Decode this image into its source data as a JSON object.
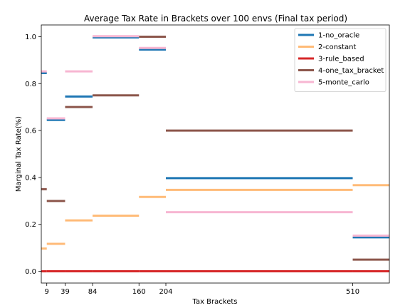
{
  "chart_data": {
    "type": "line",
    "title": "Average Tax Rate in Brackets over 100 envs (Final tax period)",
    "xlabel": "Tax Brackets",
    "ylabel": "Marginal Tax Rate(%)",
    "xlim": [
      0,
      570
    ],
    "ylim": [
      -0.05,
      1.05
    ],
    "xticks": [
      9,
      39,
      84,
      160,
      204,
      510
    ],
    "xtick_labels": [
      "9",
      "39",
      "84",
      "160",
      "204",
      "510"
    ],
    "yticks": [
      0.0,
      0.2,
      0.4,
      0.6,
      0.8,
      1.0
    ],
    "ytick_labels": [
      "0.0",
      "0.2",
      "0.4",
      "0.6",
      "0.8",
      "1.0"
    ],
    "grid": false,
    "legend_position": "top-right",
    "segments": [
      [
        0,
        9
      ],
      [
        9,
        39
      ],
      [
        39,
        84
      ],
      [
        84,
        160
      ],
      [
        160,
        204
      ],
      [
        204,
        510
      ],
      [
        510,
        570
      ]
    ],
    "series": [
      {
        "name": "1-no_oracle",
        "color": "#1f77b4",
        "values": [
          0.845,
          0.645,
          0.745,
          0.997,
          0.945,
          0.397,
          0.145
        ]
      },
      {
        "name": "2-constant",
        "color": "#ffbb78",
        "values": [
          0.097,
          0.117,
          0.217,
          0.237,
          0.317,
          0.347,
          0.367
        ]
      },
      {
        "name": "3-rule_based",
        "color": "#d62728",
        "values": [
          0.0,
          0.0,
          0.0,
          0.0,
          0.0,
          0.0,
          0.0
        ]
      },
      {
        "name": "4-one_tax_bracket",
        "color": "#8c564b",
        "values": [
          0.35,
          0.3,
          0.7,
          0.75,
          1.0,
          0.6,
          0.05
        ]
      },
      {
        "name": "5-monte_carlo",
        "color": "#f7b6d2",
        "values": [
          0.852,
          0.652,
          0.852,
          1.002,
          0.952,
          0.252,
          0.152
        ]
      }
    ]
  }
}
